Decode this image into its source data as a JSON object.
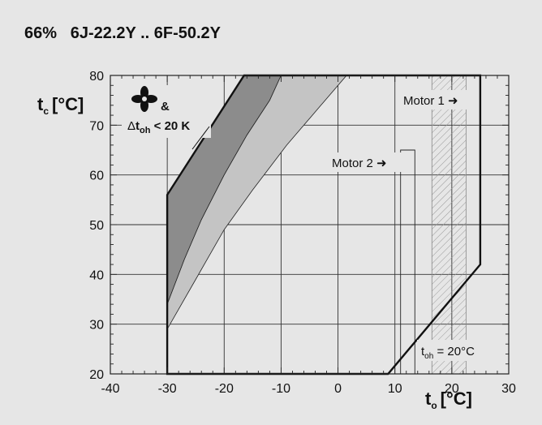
{
  "title_percent": "66%",
  "title_models": "6J-22.2Y .. 6F-50.2Y",
  "icons": {
    "fan": "fan-icon"
  },
  "chart_data": {
    "type": "area",
    "xlim": [
      -40,
      30
    ],
    "ylim": [
      20,
      80
    ],
    "grid": true,
    "x_ticks": [
      -40,
      -30,
      -20,
      -10,
      0,
      10,
      20,
      30
    ],
    "x_tick_labels": [
      "-40",
      "-30",
      "-20",
      "-10",
      "0",
      "10",
      "20",
      "30"
    ],
    "y_ticks": [
      20,
      30,
      40,
      50,
      60,
      70,
      80
    ],
    "y_tick_labels": [
      "20",
      "30",
      "40",
      "50",
      "60",
      "70",
      "80"
    ],
    "xlabel_main": "t",
    "xlabel_sub": "o",
    "xlabel_unit": "[°C]",
    "ylabel_main": "t",
    "ylabel_sub": "c",
    "ylabel_unit": "[°C]",
    "envelope": [
      [
        -30,
        20
      ],
      [
        -30,
        56
      ],
      [
        -16.5,
        80
      ],
      [
        25,
        80
      ],
      [
        25,
        42
      ],
      [
        8.8,
        20
      ]
    ],
    "regions": [
      {
        "name": "dark",
        "color": "#8c8c8c",
        "points": [
          [
            -30,
            56
          ],
          [
            -16.5,
            80
          ],
          [
            -10,
            80
          ],
          [
            -12,
            75
          ],
          [
            -16,
            68
          ],
          [
            -20,
            60
          ],
          [
            -24,
            51
          ],
          [
            -27,
            43
          ],
          [
            -30,
            34
          ]
        ]
      },
      {
        "name": "light",
        "color": "#c4c4c4",
        "points": [
          [
            -30,
            34
          ],
          [
            -27,
            43
          ],
          [
            -24,
            51
          ],
          [
            -20,
            60
          ],
          [
            -16,
            68
          ],
          [
            -12,
            75
          ],
          [
            -10,
            80
          ],
          [
            1.5,
            80
          ],
          [
            -3,
            74
          ],
          [
            -9,
            66
          ],
          [
            -15,
            57
          ],
          [
            -20,
            49
          ],
          [
            -25,
            39
          ],
          [
            -30,
            29
          ]
        ]
      }
    ],
    "motor2_limit": {
      "x": [
        11,
        13.5
      ],
      "y_top": 65,
      "label": "Motor 2 ➜"
    },
    "motor1_hatch": {
      "x": [
        16.5,
        22.5
      ],
      "label": "Motor 1 ➜"
    },
    "fan_annotation": {
      "amp": "&",
      "delta": "Δ",
      "t": "t",
      "sub": "oh",
      "rest": " < 20 K"
    },
    "toh_annotation": {
      "t": "t",
      "sub": "oh",
      "rest": " = 20°C"
    }
  }
}
